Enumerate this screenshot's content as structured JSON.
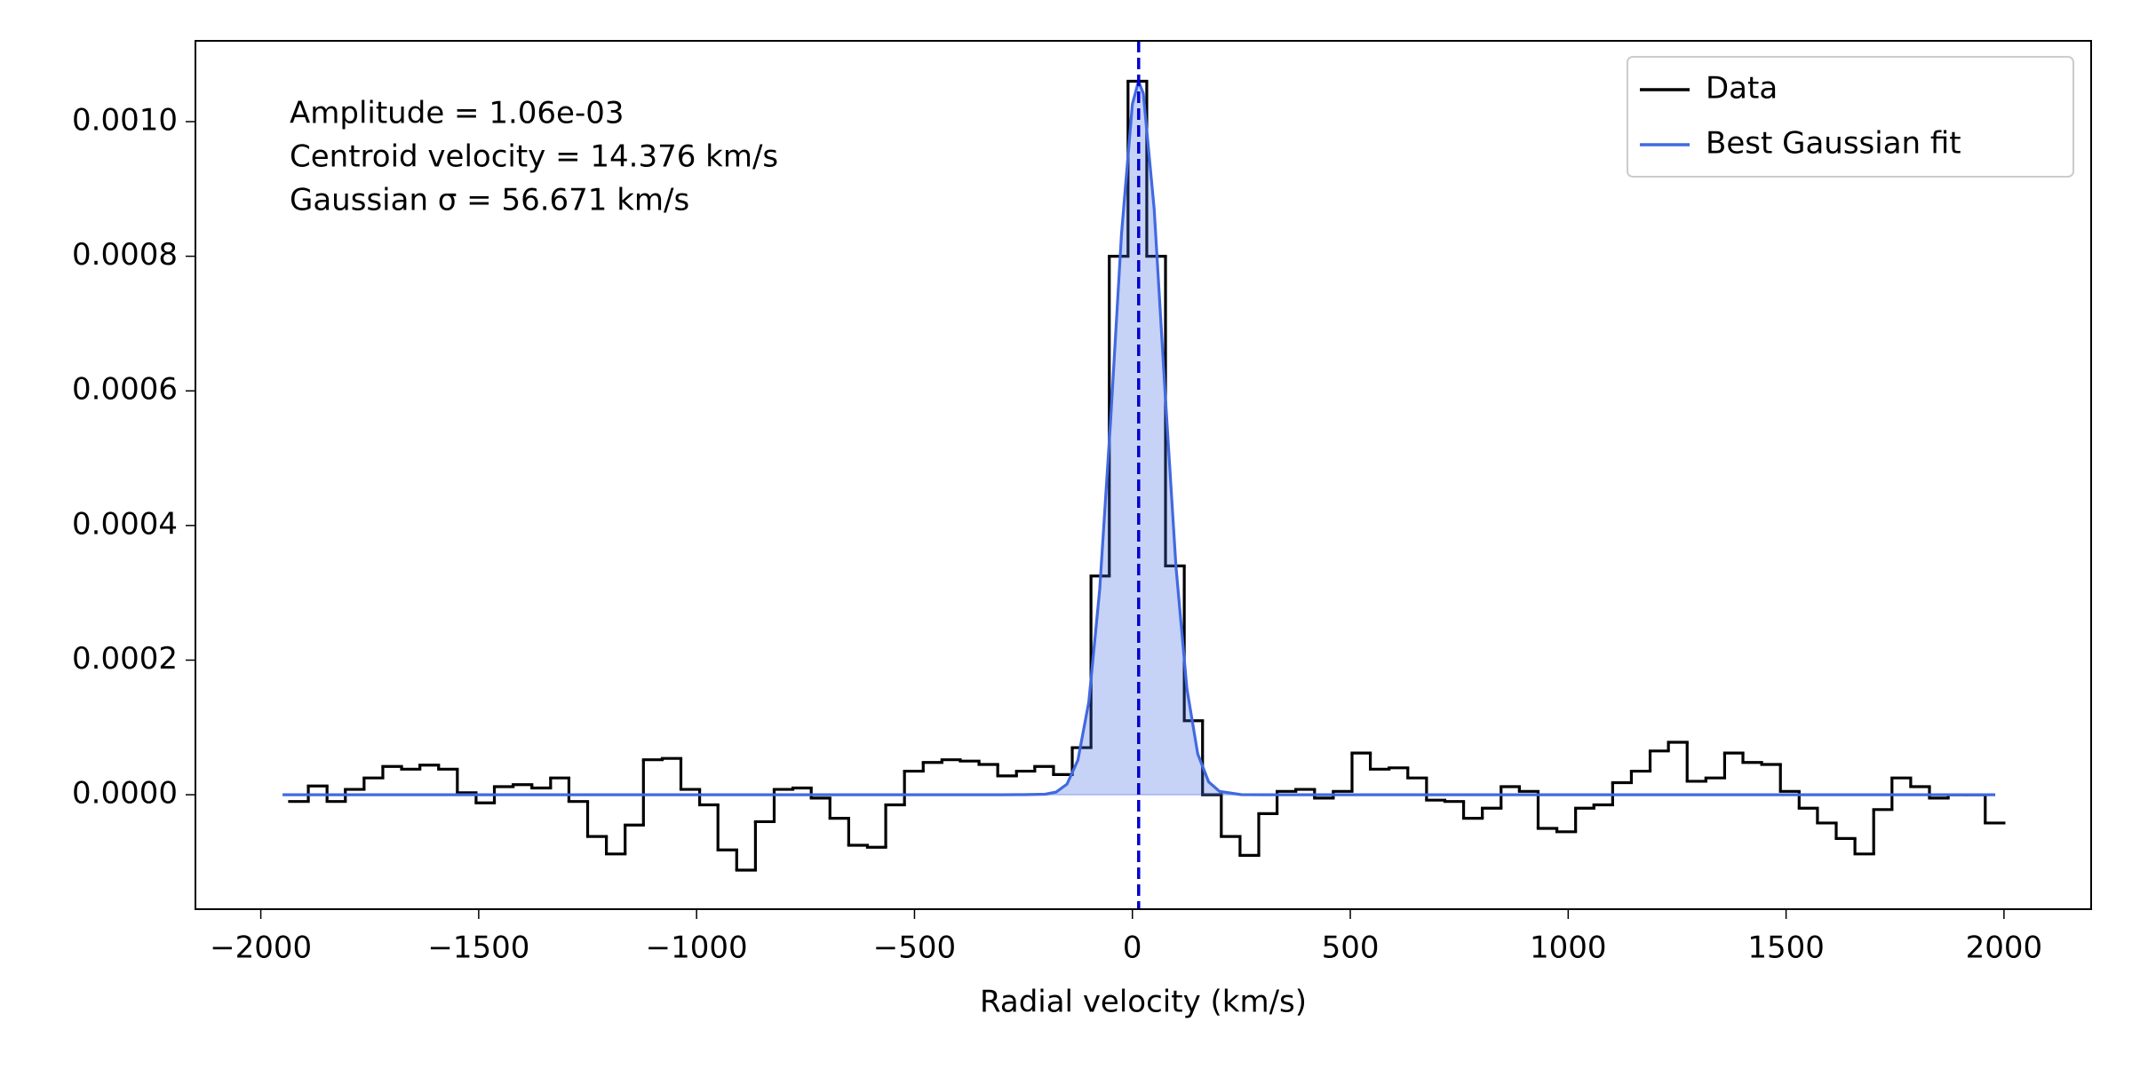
{
  "chart_data": {
    "type": "line",
    "x_label": "Radial velocity (km/s)",
    "annotations": [
      "Amplitude = 1.06e-03",
      "Centroid velocity = 14.376 km/s",
      "Gaussian σ = 56.671 km/s"
    ],
    "xlim": [
      -2150,
      2200
    ],
    "ylim": [
      -0.00017,
      0.00112
    ],
    "xticks": [
      {
        "value": -2000,
        "label": "−2000"
      },
      {
        "value": -1500,
        "label": "−1500"
      },
      {
        "value": -1000,
        "label": "−1000"
      },
      {
        "value": -500,
        "label": "−500"
      },
      0,
      500,
      1000,
      1500,
      2000
    ],
    "yticks": [
      {
        "value": 0,
        "label": "0.0000"
      },
      {
        "value": 0.0002,
        "label": "0.0002"
      },
      {
        "value": 0.0004,
        "label": "0.0004"
      },
      {
        "value": 0.0006,
        "label": "0.0006"
      },
      {
        "value": 0.0008,
        "label": "0.0008"
      },
      {
        "value": 0.001,
        "label": "0.0010"
      }
    ],
    "legend": "upper right",
    "vline": {
      "value": 14.376,
      "color": "#0000cd",
      "style": "dashed"
    },
    "series": [
      {
        "name": "Data",
        "color": "#000000",
        "bins": [
          -1934,
          -1891,
          -1848,
          -1806,
          -1763,
          -1720,
          -1677,
          -1635,
          -1592,
          -1549,
          -1506,
          -1464,
          -1421,
          -1378,
          -1335,
          -1293,
          -1250,
          -1207,
          -1164,
          -1122,
          -1079,
          -1036,
          -993,
          -951,
          -908,
          -865,
          -822,
          -779,
          -737,
          -694,
          -651,
          -608,
          -566,
          -523,
          -480,
          -437,
          -395,
          -352,
          -309,
          -266,
          -224,
          -181,
          -138,
          -95,
          -53,
          -10,
          33,
          76,
          119,
          161,
          204,
          247,
          290,
          332,
          375,
          418,
          461,
          504,
          546,
          589,
          632,
          675,
          717,
          760,
          803,
          846,
          888,
          931,
          974,
          1017,
          1059,
          1102,
          1145,
          1188,
          1230,
          1273,
          1316,
          1359,
          1401,
          1444,
          1487,
          1530,
          1572,
          1615,
          1658,
          1701,
          1743,
          1786,
          1829,
          1872,
          1914,
          1957,
          2000
        ],
        "values": [
          -1e-05,
          1.3e-05,
          -1e-05,
          8e-06,
          2.5e-05,
          4.2e-05,
          3.8e-05,
          4.4e-05,
          3.8e-05,
          3e-06,
          -1.2e-05,
          1.2e-05,
          1.5e-05,
          1e-05,
          2.5e-05,
          -1e-05,
          -6.2e-05,
          -8.8e-05,
          -4.5e-05,
          5.2e-05,
          5.4e-05,
          8e-06,
          -1.5e-05,
          -8.2e-05,
          -0.000112,
          -4e-05,
          8e-06,
          1e-05,
          -5e-06,
          -3.5e-05,
          -7.5e-05,
          -7.8e-05,
          -1.5e-05,
          3.5e-05,
          4.8e-05,
          5.2e-05,
          5e-05,
          4.5e-05,
          2.8e-05,
          3.5e-05,
          4.2e-05,
          3e-05,
          7e-05,
          0.000325,
          0.0008,
          0.00106,
          0.0008,
          0.00034,
          0.00011,
          0.0,
          -6.2e-05,
          -9e-05,
          -2.8e-05,
          5e-06,
          8e-06,
          -5e-06,
          5e-06,
          6.2e-05,
          3.8e-05,
          4e-05,
          2.5e-05,
          -8e-06,
          -1e-05,
          -3.5e-05,
          -2e-05,
          1.2e-05,
          5e-06,
          -5e-05,
          -5.5e-05,
          -2e-05,
          -1.5e-05,
          1.8e-05,
          3.5e-05,
          6.5e-05,
          7.8e-05,
          2e-05,
          2.5e-05,
          6.2e-05,
          4.8e-05,
          4.5e-05,
          5e-06,
          -2e-05,
          -4.2e-05,
          -6.5e-05,
          -8.8e-05,
          -2.2e-05,
          2.5e-05,
          1.2e-05,
          -5e-06,
          0.0,
          0.0,
          -4.2e-05
        ]
      },
      {
        "name": "Best Gaussian fit",
        "color": "#4169e1",
        "fill_alpha": 0.3,
        "x": [
          -1950,
          -300,
          -250,
          -200,
          -175,
          -150,
          -125,
          -100,
          -75,
          -50,
          -25,
          0,
          14,
          25,
          50,
          75,
          100,
          125,
          150,
          175,
          200,
          250,
          300,
          1980
        ],
        "values": [
          0,
          0,
          1.9e-07,
          8.3e-07,
          3.98e-06,
          1.58e-05,
          5.15e-05,
          0.000138,
          0.000305,
          0.000556,
          0.000833,
          0.001026,
          0.00106,
          0.001042,
          0.00087,
          0.000598,
          0.000339,
          0.000158,
          6.05e-05,
          1.91e-05,
          4.96e-06,
          1.9e-07,
          0,
          0
        ]
      }
    ]
  }
}
